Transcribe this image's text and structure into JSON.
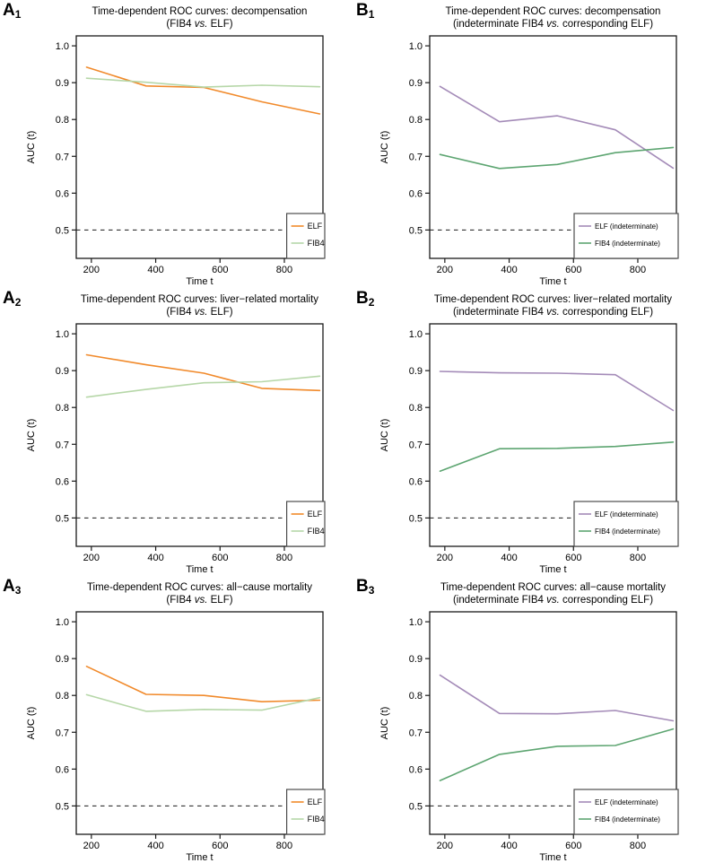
{
  "figure": {
    "background": "#ffffff",
    "reference_line_label": "chance level 0.5 (dashed)"
  },
  "chart_data": [
    {
      "panel": "A1",
      "panel_letter": "A",
      "panel_index": "1",
      "type": "line",
      "title": "Time-dependent ROC curves: decompensation",
      "subtitle": "(FIB4 vs. ELF)",
      "subtitle_parts": {
        "prefix": "(FIB4 ",
        "vs": "vs.",
        "suffix": " ELF)"
      },
      "xlabel": "Time t",
      "ylabel": "AUC (t)",
      "x": [
        185,
        370,
        550,
        730,
        910
      ],
      "xticks": [
        200,
        400,
        600,
        800
      ],
      "yticks": [
        0.5,
        0.6,
        0.7,
        0.8,
        0.9,
        1.0
      ],
      "xlim": [
        153,
        920
      ],
      "ylim": [
        0.423,
        1.027
      ],
      "reference_line_y": 0.5,
      "grid": false,
      "legend_position": "bottomright",
      "series": [
        {
          "name": "ELF",
          "color": "#F18A2B",
          "values": [
            0.942,
            0.891,
            0.887,
            0.848,
            0.815
          ]
        },
        {
          "name": "FIB4",
          "color": "#B6D7A8",
          "values": [
            0.912,
            0.901,
            0.888,
            0.893,
            0.889
          ]
        }
      ]
    },
    {
      "panel": "B1",
      "panel_letter": "B",
      "panel_index": "1",
      "type": "line",
      "title": "Time-dependent ROC curves: decompensation",
      "subtitle": "(indeterminate FIB4 vs. corresponding ELF)",
      "subtitle_parts": {
        "prefix": "(indeterminate FIB4 ",
        "vs": "vs.",
        "suffix": " corresponding ELF)"
      },
      "xlabel": "Time t",
      "ylabel": "AUC (t)",
      "x": [
        185,
        370,
        550,
        730,
        910
      ],
      "xticks": [
        200,
        400,
        600,
        800
      ],
      "yticks": [
        0.5,
        0.6,
        0.7,
        0.8,
        0.9,
        1.0
      ],
      "xlim": [
        153,
        920
      ],
      "ylim": [
        0.423,
        1.027
      ],
      "reference_line_y": 0.5,
      "grid": false,
      "legend_position": "bottomright",
      "series": [
        {
          "name": "ELF (indeterminate)",
          "color": "#A48BB8",
          "values": [
            0.89,
            0.794,
            0.81,
            0.772,
            0.668
          ]
        },
        {
          "name": "FIB4 (indeterminate)",
          "color": "#5DA571",
          "values": [
            0.705,
            0.667,
            0.678,
            0.71,
            0.724
          ]
        }
      ]
    },
    {
      "panel": "A2",
      "panel_letter": "A",
      "panel_index": "2",
      "type": "line",
      "title": "Time-dependent ROC curves: liver−related mortality",
      "subtitle": "(FIB4 vs. ELF)",
      "subtitle_parts": {
        "prefix": "(FIB4 ",
        "vs": "vs.",
        "suffix": " ELF)"
      },
      "xlabel": "Time t",
      "ylabel": "AUC (t)",
      "x": [
        185,
        370,
        550,
        730,
        910
      ],
      "xticks": [
        200,
        400,
        600,
        800
      ],
      "yticks": [
        0.5,
        0.6,
        0.7,
        0.8,
        0.9,
        1.0
      ],
      "xlim": [
        153,
        920
      ],
      "ylim": [
        0.423,
        1.027
      ],
      "reference_line_y": 0.5,
      "grid": false,
      "legend_position": "bottomright",
      "series": [
        {
          "name": "ELF",
          "color": "#F18A2B",
          "values": [
            0.943,
            0.916,
            0.893,
            0.852,
            0.846
          ]
        },
        {
          "name": "FIB4",
          "color": "#B6D7A8",
          "values": [
            0.828,
            0.849,
            0.867,
            0.87,
            0.885
          ]
        }
      ]
    },
    {
      "panel": "B2",
      "panel_letter": "B",
      "panel_index": "2",
      "type": "line",
      "title": "Time-dependent ROC curves: liver−related mortality",
      "subtitle": "(indeterminate FIB4 vs. corresponding ELF)",
      "subtitle_parts": {
        "prefix": "(indeterminate FIB4 ",
        "vs": "vs.",
        "suffix": " corresponding ELF)"
      },
      "xlabel": "Time t",
      "ylabel": "AUC (t)",
      "x": [
        185,
        370,
        550,
        730,
        910
      ],
      "xticks": [
        200,
        400,
        600,
        800
      ],
      "yticks": [
        0.5,
        0.6,
        0.7,
        0.8,
        0.9,
        1.0
      ],
      "xlim": [
        153,
        920
      ],
      "ylim": [
        0.423,
        1.027
      ],
      "reference_line_y": 0.5,
      "grid": false,
      "legend_position": "bottomright",
      "series": [
        {
          "name": "ELF (indeterminate)",
          "color": "#A48BB8",
          "values": [
            0.898,
            0.894,
            0.893,
            0.889,
            0.792
          ]
        },
        {
          "name": "FIB4 (indeterminate)",
          "color": "#5DA571",
          "values": [
            0.627,
            0.688,
            0.689,
            0.694,
            0.706
          ]
        }
      ]
    },
    {
      "panel": "A3",
      "panel_letter": "A",
      "panel_index": "3",
      "type": "line",
      "title": "Time-dependent ROC curves: all−cause mortality",
      "subtitle": "(FIB4 vs. ELF)",
      "subtitle_parts": {
        "prefix": "(FIB4 ",
        "vs": "vs.",
        "suffix": " ELF)"
      },
      "xlabel": "Time t",
      "ylabel": "AUC (t)",
      "x": [
        185,
        370,
        550,
        730,
        910
      ],
      "xticks": [
        200,
        400,
        600,
        800
      ],
      "yticks": [
        0.5,
        0.6,
        0.7,
        0.8,
        0.9,
        1.0
      ],
      "xlim": [
        153,
        920
      ],
      "ylim": [
        0.423,
        1.027
      ],
      "reference_line_y": 0.5,
      "grid": false,
      "legend_position": "bottomright",
      "series": [
        {
          "name": "ELF",
          "color": "#F18A2B",
          "values": [
            0.879,
            0.803,
            0.8,
            0.783,
            0.787
          ]
        },
        {
          "name": "FIB4",
          "color": "#B6D7A8",
          "values": [
            0.802,
            0.757,
            0.762,
            0.76,
            0.794
          ]
        }
      ]
    },
    {
      "panel": "B3",
      "panel_letter": "B",
      "panel_index": "3",
      "type": "line",
      "title": "Time-dependent ROC curves: all−cause mortality",
      "subtitle": "(indeterminate FIB4 vs. corresponding ELF)",
      "subtitle_parts": {
        "prefix": "(indeterminate FIB4 ",
        "vs": "vs.",
        "suffix": " corresponding ELF)"
      },
      "xlabel": "Time t",
      "ylabel": "AUC (t)",
      "x": [
        185,
        370,
        550,
        730,
        910
      ],
      "xticks": [
        200,
        400,
        600,
        800
      ],
      "yticks": [
        0.5,
        0.6,
        0.7,
        0.8,
        0.9,
        1.0
      ],
      "xlim": [
        153,
        920
      ],
      "ylim": [
        0.423,
        1.027
      ],
      "reference_line_y": 0.5,
      "grid": false,
      "legend_position": "bottomright",
      "series": [
        {
          "name": "ELF (indeterminate)",
          "color": "#A48BB8",
          "values": [
            0.855,
            0.751,
            0.75,
            0.759,
            0.731
          ]
        },
        {
          "name": "FIB4 (indeterminate)",
          "color": "#5DA571",
          "values": [
            0.569,
            0.64,
            0.662,
            0.664,
            0.709
          ]
        }
      ]
    }
  ]
}
